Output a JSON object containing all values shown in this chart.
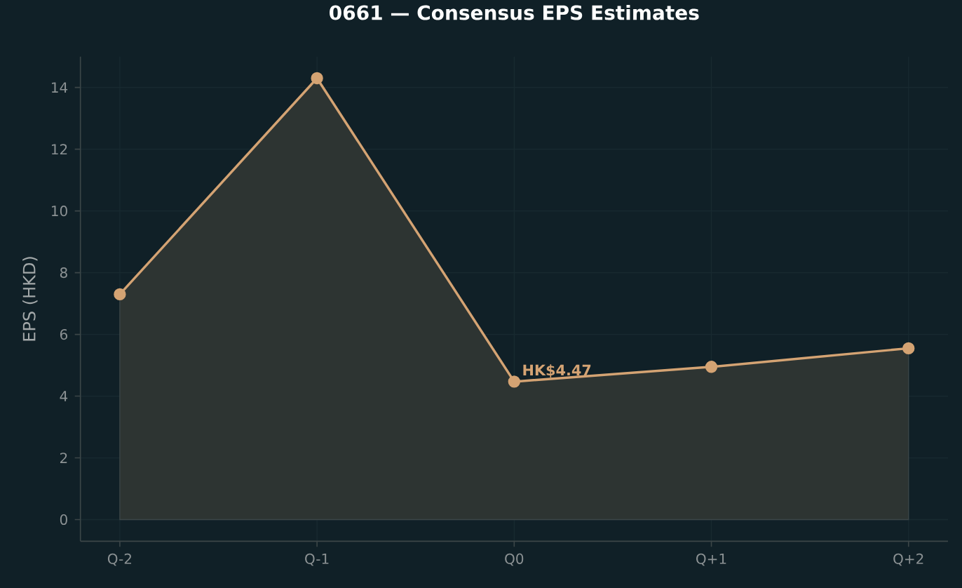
{
  "chart_data": {
    "type": "area",
    "title": "0661 — Consensus EPS Estimates",
    "ylabel": "EPS (HKD)",
    "categories": [
      "Q-2",
      "Q-1",
      "Q0",
      "Q+1",
      "Q+2"
    ],
    "series": [
      {
        "color": "#d4a373",
        "values": [
          7.3,
          14.3,
          4.47,
          4.95,
          5.55
        ]
      }
    ],
    "ylim": [
      -0.7,
      15
    ],
    "yticks": [
      0,
      2,
      4,
      6,
      8,
      10,
      12,
      14
    ],
    "grid": true,
    "marker": "circle",
    "line_style": "solid",
    "annotations": [
      {
        "text": "HK$4.47",
        "x": "Q0",
        "y": 4.47
      }
    ]
  }
}
